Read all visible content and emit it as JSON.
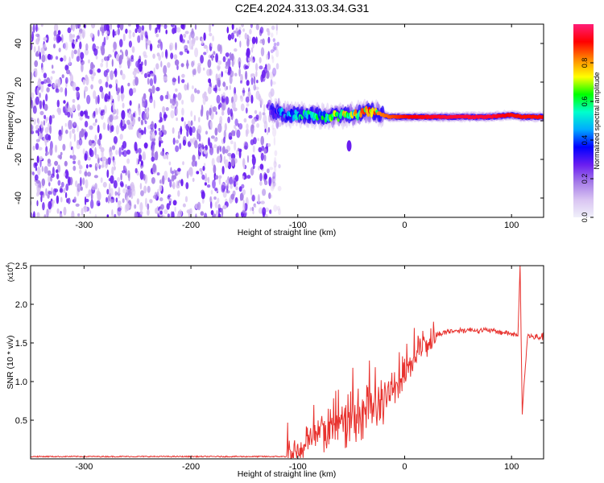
{
  "title": "C2E4.2024.313.03.34.G31",
  "colors": {
    "snr_line": "#e8322e",
    "blob_purple": "#6a1ef0",
    "colormap": [
      "#f0f0fa",
      "#d9c4f2",
      "#a57be8",
      "#6a1ef0",
      "#0000ff",
      "#00aaff",
      "#00ffcc",
      "#00ff00",
      "#ffff00",
      "#ff8800",
      "#ff0000",
      "#ff1e78"
    ]
  },
  "chart_data": [
    {
      "type": "heatmap",
      "title": "C2E4.2024.313.03.34.G31",
      "xlabel": "Height of straight line (km)",
      "ylabel": "Frequency (Hz)",
      "xlim": [
        -350,
        130
      ],
      "ylim": [
        -50,
        50
      ],
      "xticks": [
        -300,
        -200,
        -100,
        0,
        100
      ],
      "xtick_labels": [
        "-300",
        "-200",
        "-100",
        "0",
        "100"
      ],
      "yticks": [
        -40,
        -20,
        0,
        20,
        40
      ],
      "ytick_labels": [
        "-40",
        "-20",
        "0",
        "20",
        "40"
      ],
      "noise_region_x": [
        -350,
        -125
      ],
      "signal_band": {
        "x": [
          -125,
          -110,
          -90,
          -70,
          -50,
          -30,
          -15,
          0,
          40,
          80,
          100,
          110,
          130
        ],
        "frequency": [
          5,
          3,
          3,
          2,
          3,
          5,
          2,
          2,
          2,
          2,
          3,
          2,
          2
        ],
        "peak_amplitude": [
          0.3,
          0.5,
          0.55,
          0.6,
          0.7,
          0.8,
          0.85,
          0.9,
          0.95,
          0.95,
          0.9,
          0.9,
          0.9
        ]
      },
      "isolated_blob": {
        "x": -52,
        "frequency": -13
      },
      "colorbar": {
        "label": "Normalized spectral amplitude",
        "range": [
          0,
          1
        ],
        "ticks": [
          0.0,
          0.2,
          0.4,
          0.6,
          0.8
        ],
        "tick_labels": [
          "0.0",
          "0.2",
          "0.4",
          "0.6",
          "0.8"
        ]
      }
    },
    {
      "type": "line",
      "xlabel": "Height of straight line (km)",
      "ylabel": "SNR (10 * v/v)",
      "scale_label": "(x10",
      "scale_exponent": "4",
      "scale_close": ")",
      "xlim": [
        -350,
        130
      ],
      "ylim": [
        0,
        2.5
      ],
      "xticks": [
        -300,
        -200,
        -100,
        0,
        100
      ],
      "xtick_labels": [
        "-300",
        "-200",
        "-100",
        "0",
        "100"
      ],
      "yticks": [
        0.5,
        1.0,
        1.5,
        2.0,
        2.5
      ],
      "ytick_labels": [
        "0.5",
        "1.0",
        "1.5",
        "2.0",
        "2.5"
      ],
      "series": [
        {
          "x": [
            -350,
            -110,
            -100,
            -90,
            -80,
            -70,
            -60,
            -50,
            -40,
            -30,
            -20,
            -10,
            0,
            10,
            20,
            30,
            40,
            60,
            80,
            100,
            106,
            108,
            110,
            115,
            120,
            130
          ],
          "y": [
            0.03,
            0.03,
            0.08,
            0.25,
            0.32,
            0.4,
            0.45,
            0.5,
            0.6,
            0.7,
            0.75,
            0.9,
            1.1,
            1.3,
            1.5,
            1.6,
            1.65,
            1.67,
            1.66,
            1.62,
            1.6,
            2.5,
            0.6,
            1.6,
            1.57,
            1.58
          ]
        }
      ]
    }
  ]
}
